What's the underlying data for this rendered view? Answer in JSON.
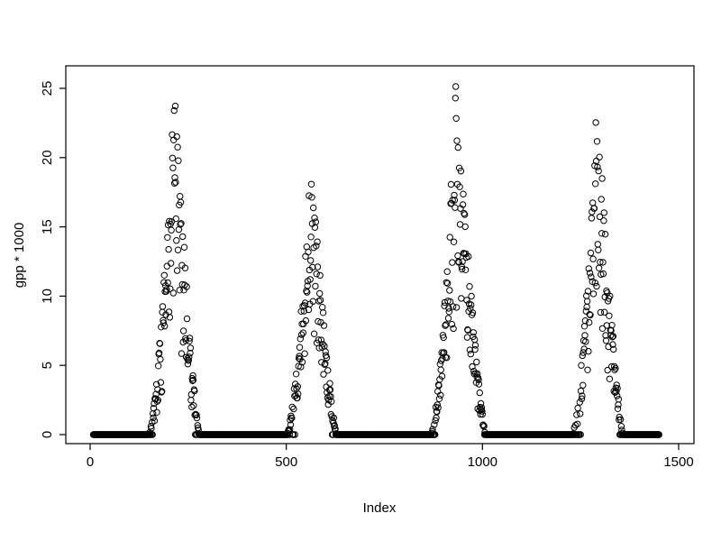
{
  "chart_data": {
    "type": "scatter",
    "title": "",
    "xlabel": "Index",
    "ylabel": "gpp * 1000",
    "xlim": [
      0,
      1500
    ],
    "ylim": [
      0,
      25
    ],
    "x_ticks": [
      0,
      500,
      1000,
      1500
    ],
    "y_ticks": [
      0,
      5,
      10,
      15,
      20,
      25
    ],
    "grid": false,
    "legend": "none",
    "marker": "open-circle",
    "marker_color": "#000000",
    "background": "#ffffff",
    "x_start": 8,
    "x_end": 1450,
    "baseline_value": 0,
    "seed": 42,
    "seasons": [
      {
        "rise_start": 148,
        "peak_x": 215,
        "peak_height": 25.5,
        "fall_end": 278
      },
      {
        "rise_start": 500,
        "peak_x": 562,
        "peak_height": 20.3,
        "fall_end": 628
      },
      {
        "rise_start": 868,
        "peak_x": 932,
        "peak_height": 25.5,
        "fall_end": 1008
      },
      {
        "rise_start": 1228,
        "peak_x": 1292,
        "peak_height": 24.5,
        "fall_end": 1358
      }
    ]
  }
}
